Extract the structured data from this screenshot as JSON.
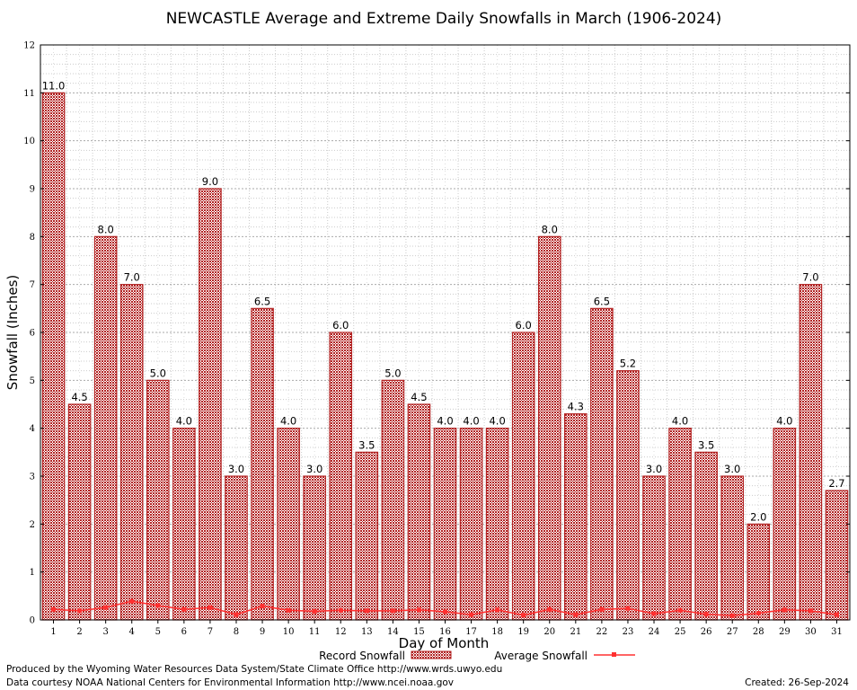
{
  "chart_data": {
    "type": "bar",
    "title": "NEWCASTLE Average and Extreme Daily Snowfalls in March (1906-2024)",
    "xlabel": "Day of Month",
    "ylabel": "Snowfall (Inches)",
    "ylim": [
      0,
      12
    ],
    "yticks": [
      "0",
      "1",
      "2",
      "3",
      "4",
      "5",
      "6",
      "7",
      "8",
      "9",
      "10",
      "11",
      "12"
    ],
    "categories": [
      "1",
      "2",
      "3",
      "4",
      "5",
      "6",
      "7",
      "8",
      "9",
      "10",
      "11",
      "12",
      "13",
      "14",
      "15",
      "16",
      "17",
      "18",
      "19",
      "20",
      "21",
      "22",
      "23",
      "24",
      "25",
      "26",
      "27",
      "28",
      "29",
      "30",
      "31"
    ],
    "grid": true,
    "legend_position": "bottom",
    "series": [
      {
        "name": "Record Snowfall",
        "kind": "bar",
        "color": "#b22222",
        "values": [
          11.0,
          4.5,
          8.0,
          7.0,
          5.0,
          4.0,
          9.0,
          3.0,
          6.5,
          4.0,
          3.0,
          6.0,
          3.5,
          5.0,
          4.5,
          4.0,
          4.0,
          4.0,
          6.0,
          8.0,
          4.3,
          6.5,
          5.2,
          3.0,
          4.0,
          3.5,
          3.0,
          2.0,
          4.0,
          7.0,
          2.7
        ],
        "labels": [
          "11.0",
          "4.5",
          "8.0",
          "7.0",
          "5.0",
          "4.0",
          "9.0",
          "3.0",
          "6.5",
          "4.0",
          "3.0",
          "6.0",
          "3.5",
          "5.0",
          "4.5",
          "4.0",
          "4.0",
          "4.0",
          "6.0",
          "8.0",
          "4.3",
          "6.5",
          "5.2",
          "3.0",
          "4.0",
          "3.5",
          "3.0",
          "2.0",
          "4.0",
          "7.0",
          "2.7"
        ]
      },
      {
        "name": "Average Snowfall",
        "kind": "line",
        "color": "#ff3030",
        "values": [
          0.22,
          0.19,
          0.26,
          0.39,
          0.3,
          0.22,
          0.26,
          0.11,
          0.29,
          0.2,
          0.18,
          0.2,
          0.19,
          0.19,
          0.21,
          0.17,
          0.11,
          0.21,
          0.1,
          0.22,
          0.11,
          0.22,
          0.24,
          0.13,
          0.2,
          0.12,
          0.09,
          0.14,
          0.21,
          0.19,
          0.11
        ]
      }
    ]
  },
  "footer": {
    "producer": "Produced by the Wyoming Water Resources Data System/State Climate Office http://www.wrds.uwyo.edu",
    "source": "Data courtesy NOAA National Centers for Environmental Information http://www.ncei.noaa.gov",
    "created": "Created: 26-Sep-2024"
  }
}
